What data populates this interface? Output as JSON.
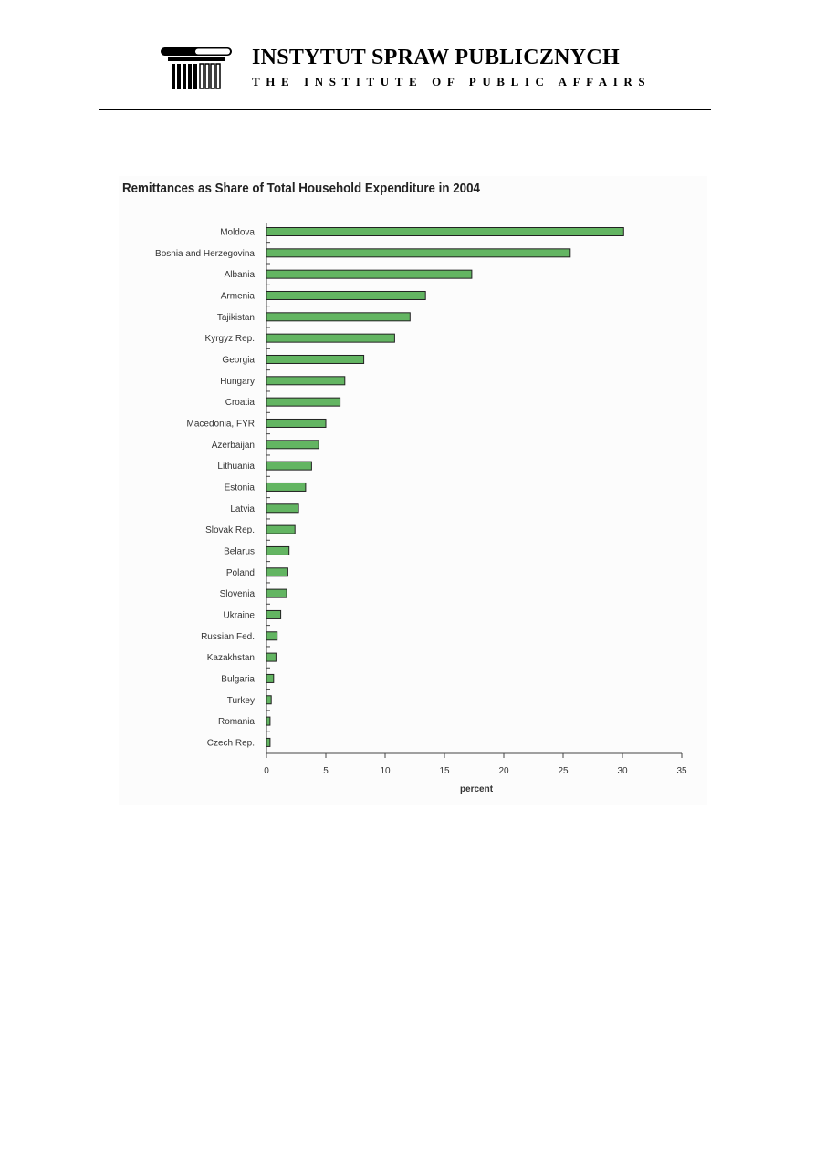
{
  "header": {
    "org_name": "INSTYTUT SPRAW PUBLICZNYCH",
    "org_name_en": "THE INSTITUTE OF PUBLIC AFFAIRS",
    "logo_icon": "column-capital-icon"
  },
  "chart_data": {
    "type": "bar",
    "orientation": "horizontal",
    "title": "Remittances as Share of Total Household Expenditure in 2004",
    "xlabel": "percent",
    "ylabel": "",
    "xlim": [
      0,
      35
    ],
    "xticks": [
      "0",
      "5",
      "10",
      "15",
      "20",
      "25",
      "30",
      "35"
    ],
    "grid": false,
    "bar_color": "#63b562",
    "categories": [
      "Moldova",
      "Bosnia and Herzegovina",
      "Albania",
      "Armenia",
      "Tajikistan",
      "Kyrgyz Rep.",
      "Georgia",
      "Hungary",
      "Croatia",
      "Macedonia, FYR",
      "Azerbaijan",
      "Lithuania",
      "Estonia",
      "Latvia",
      "Slovak Rep.",
      "Belarus",
      "Poland",
      "Slovenia",
      "Ukraine",
      "Russian Fed.",
      "Kazakhstan",
      "Bulgaria",
      "Turkey",
      "Romania",
      "Czech Rep."
    ],
    "values": [
      30.1,
      25.6,
      17.3,
      13.4,
      12.1,
      10.8,
      8.2,
      6.6,
      6.2,
      5.0,
      4.4,
      3.8,
      3.3,
      2.7,
      2.4,
      1.9,
      1.8,
      1.7,
      1.2,
      0.9,
      0.8,
      0.6,
      0.4,
      0.3,
      0.3
    ]
  }
}
